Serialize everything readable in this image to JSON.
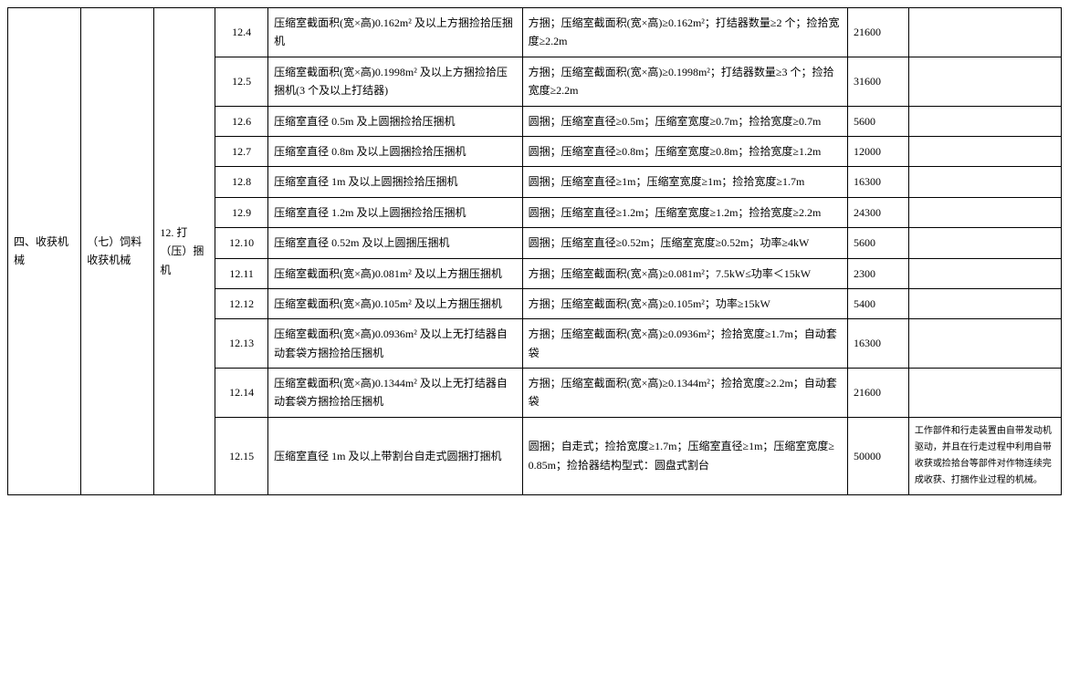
{
  "table": {
    "header_a": "四、收获机械",
    "header_b": "（七）饲料收获机械",
    "header_c": "12. 打（压）捆机",
    "rows": [
      {
        "id": "12.4",
        "name": "压缩室截面积(宽×高)0.162m² 及以上方捆捡拾压捆机",
        "spec": "方捆；压缩室截面积(宽×高)≥0.162m²；打结器数量≥2 个；捡拾宽度≥2.2m",
        "price": "21600",
        "note": ""
      },
      {
        "id": "12.5",
        "name": "压缩室截面积(宽×高)0.1998m² 及以上方捆捡拾压捆机(3 个及以上打结器)",
        "spec": "方捆；压缩室截面积(宽×高)≥0.1998m²；打结器数量≥3 个；捡拾宽度≥2.2m",
        "price": "31600",
        "note": ""
      },
      {
        "id": "12.6",
        "name": "压缩室直径 0.5m 及上圆捆捡拾压捆机",
        "spec": "圆捆；压缩室直径≥0.5m；压缩室宽度≥0.7m；捡拾宽度≥0.7m",
        "price": "5600",
        "note": ""
      },
      {
        "id": "12.7",
        "name": "压缩室直径 0.8m 及以上圆捆捡拾压捆机",
        "spec": "圆捆；压缩室直径≥0.8m；压缩室宽度≥0.8m；捡拾宽度≥1.2m",
        "price": "12000",
        "note": ""
      },
      {
        "id": "12.8",
        "name": "压缩室直径 1m 及以上圆捆捡拾压捆机",
        "spec": "圆捆；压缩室直径≥1m；压缩室宽度≥1m；捡拾宽度≥1.7m",
        "price": "16300",
        "note": ""
      },
      {
        "id": "12.9",
        "name": "压缩室直径 1.2m 及以上圆捆捡拾压捆机",
        "spec": "圆捆；压缩室直径≥1.2m；压缩室宽度≥1.2m；捡拾宽度≥2.2m",
        "price": "24300",
        "note": ""
      },
      {
        "id": "12.10",
        "name": "压缩室直径 0.52m 及以上圆捆压捆机",
        "spec": "圆捆；压缩室直径≥0.52m；压缩室宽度≥0.52m；功率≥4kW",
        "price": "5600",
        "note": ""
      },
      {
        "id": "12.11",
        "name": "压缩室截面积(宽×高)0.081m² 及以上方捆压捆机",
        "spec": "方捆；压缩室截面积(宽×高)≥0.081m²；7.5kW≤功率＜15kW",
        "price": "2300",
        "note": ""
      },
      {
        "id": "12.12",
        "name": "压缩室截面积(宽×高)0.105m² 及以上方捆压捆机",
        "spec": "方捆；压缩室截面积(宽×高)≥0.105m²；功率≥15kW",
        "price": "5400",
        "note": ""
      },
      {
        "id": "12.13",
        "name": "压缩室截面积(宽×高)0.0936m² 及以上无打结器自动套袋方捆捡拾压捆机",
        "spec": "方捆；压缩室截面积(宽×高)≥0.0936m²；捡拾宽度≥1.7m；自动套袋",
        "price": "16300",
        "note": ""
      },
      {
        "id": "12.14",
        "name": "压缩室截面积(宽×高)0.1344m² 及以上无打结器自动套袋方捆捡拾压捆机",
        "spec": "方捆；压缩室截面积(宽×高)≥0.1344m²；捡拾宽度≥2.2m；自动套袋",
        "price": "21600",
        "note": ""
      },
      {
        "id": "12.15",
        "name": "压缩室直径 1m 及以上带割台自走式圆捆打捆机",
        "spec": "圆捆；自走式；捡拾宽度≥1.7m；压缩室直径≥1m；压缩室宽度≥0.85m；捡拾器结构型式：圆盘式割台",
        "price": "50000",
        "note": "工作部件和行走装置由自带发动机驱动，并且在行走过程中利用自带收获或捡拾台等部件对作物连续完成收获、打捆作业过程的机械。"
      }
    ]
  }
}
